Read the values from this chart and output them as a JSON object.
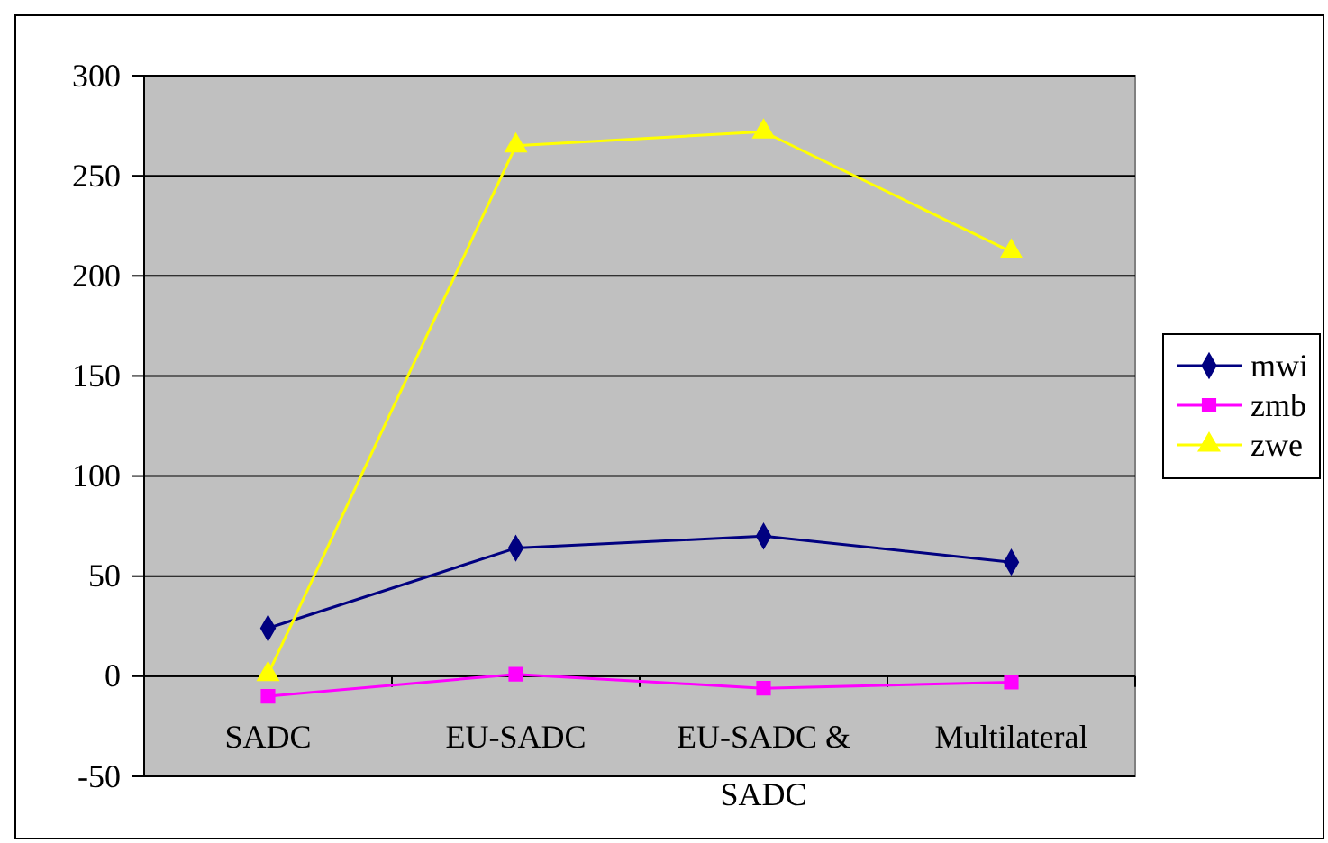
{
  "chart_data": {
    "type": "line",
    "categories": [
      "SADC",
      "EU-SADC",
      "EU-SADC & SADC",
      "Multilateral"
    ],
    "series": [
      {
        "name": "mwi",
        "color": "#000080",
        "marker": "diamond",
        "values": [
          24,
          64,
          70,
          57
        ]
      },
      {
        "name": "zmb",
        "color": "#ff00ff",
        "marker": "square",
        "values": [
          -10,
          1,
          -6,
          -3
        ]
      },
      {
        "name": "zwe",
        "color": "#ffff00",
        "marker": "triangle",
        "values": [
          1,
          265,
          272,
          212
        ]
      }
    ],
    "ylim": [
      -50,
      300
    ],
    "yticks": [
      -50,
      0,
      50,
      100,
      150,
      200,
      250,
      300
    ],
    "grid": "y",
    "legend": "right"
  }
}
